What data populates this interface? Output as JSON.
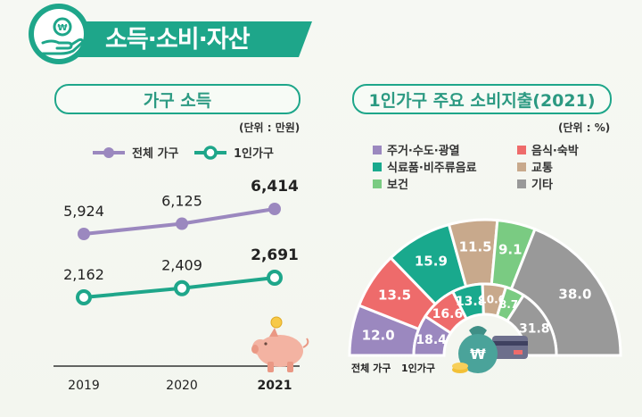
{
  "page": {
    "title": "소득·소비·자산",
    "colors": {
      "accent": "#1ea68a",
      "total": "#9b88bf",
      "single": "#1ea68a"
    }
  },
  "left_panel": {
    "title": "가구 소득",
    "unit": "(단위 : 만원)"
  },
  "right_panel": {
    "title": "1인가구 주요 소비지출(2021)",
    "unit": "(단위 : %)"
  },
  "chart_data": [
    {
      "type": "line",
      "title": "가구 소득",
      "x": [
        "2019",
        "2020",
        "2021"
      ],
      "series": [
        {
          "name": "전체 가구",
          "color": "#9b88bf",
          "values": [
            5924,
            6125,
            6414
          ],
          "labels": [
            "5,924",
            "6,125",
            "6,414"
          ]
        },
        {
          "name": "1인가구",
          "color": "#1ea68a",
          "values": [
            2162,
            2409,
            2691
          ],
          "labels": [
            "2,162",
            "2,409",
            "2,691"
          ]
        }
      ],
      "legend": "top-left"
    },
    {
      "type": "pie",
      "title": "1인가구 주요 소비지출(2021)",
      "categories": [
        "주거·수도·광열",
        "음식·숙박",
        "식료품·비주류음료",
        "교통",
        "보건",
        "기타"
      ],
      "colors": [
        "#9b88bf",
        "#ee6b6b",
        "#19a98d",
        "#c8a98c",
        "#7acb82",
        "#999999"
      ],
      "series": [
        {
          "name": "전체 가구",
          "values": [
            12.0,
            13.5,
            15.9,
            11.5,
            9.1,
            38.0
          ],
          "labels": [
            "12.0",
            "13.5",
            "15.9",
            "11.5",
            "9.1",
            "38.0"
          ]
        },
        {
          "name": "1인가구",
          "values": [
            18.4,
            16.6,
            13.8,
            10.6,
            8.7,
            31.8
          ],
          "labels": [
            "18.4",
            "16.6",
            "13.8",
            "10.6",
            "8.7",
            "31.8"
          ]
        }
      ],
      "legend": "top"
    }
  ]
}
